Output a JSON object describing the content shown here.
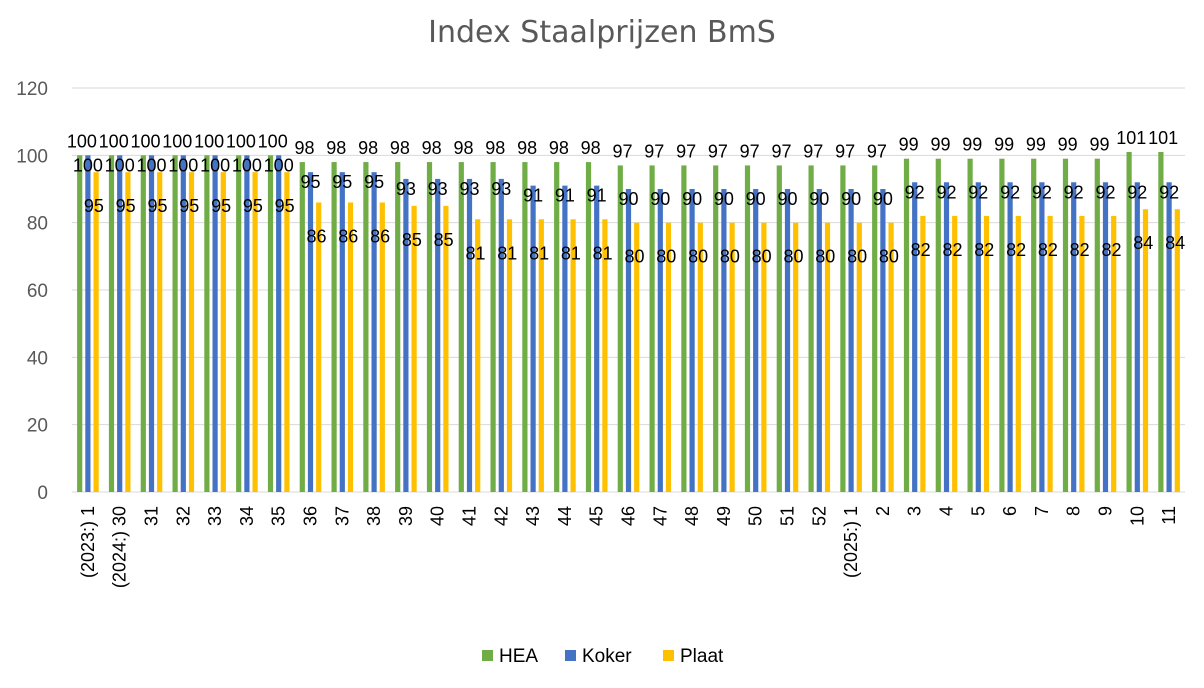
{
  "chart_data": {
    "type": "bar",
    "title": "Index Staalprijzen BmS",
    "xlabel": "",
    "ylabel": "",
    "ylim": [
      0,
      120
    ],
    "yticks": [
      0,
      20,
      40,
      60,
      80,
      100,
      120
    ],
    "grid": true,
    "legend_position": "bottom",
    "categories": [
      "(2023:) 1",
      "(2024:) 30",
      "31",
      "32",
      "33",
      "34",
      "35",
      "36",
      "37",
      "38",
      "39",
      "40",
      "41",
      "42",
      "43",
      "44",
      "45",
      "46",
      "47",
      "48",
      "49",
      "50",
      "51",
      "52",
      "(2025:) 1",
      "2",
      "3",
      "4",
      "5",
      "6",
      "7",
      "8",
      "9",
      "10",
      "11"
    ],
    "series": [
      {
        "name": "HEA",
        "color": "#70AD47",
        "values": [
          100,
          100,
          100,
          100,
          100,
          100,
          100,
          98,
          98,
          98,
          98,
          98,
          98,
          98,
          98,
          98,
          98,
          97,
          97,
          97,
          97,
          97,
          97,
          97,
          97,
          97,
          99,
          99,
          99,
          99,
          99,
          99,
          99,
          101,
          101
        ]
      },
      {
        "name": "Koker",
        "color": "#4472C4",
        "values": [
          100,
          100,
          100,
          100,
          100,
          100,
          100,
          95,
          95,
          95,
          93,
          93,
          93,
          93,
          91,
          91,
          91,
          90,
          90,
          90,
          90,
          90,
          90,
          90,
          90,
          90,
          92,
          92,
          92,
          92,
          92,
          92,
          92,
          92,
          92
        ]
      },
      {
        "name": "Plaat",
        "color": "#FFC000",
        "values": [
          95,
          95,
          95,
          95,
          95,
          95,
          95,
          86,
          86,
          86,
          85,
          85,
          81,
          81,
          81,
          81,
          81,
          80,
          80,
          80,
          80,
          80,
          80,
          80,
          80,
          80,
          82,
          82,
          82,
          82,
          82,
          82,
          82,
          84,
          84
        ]
      }
    ]
  }
}
